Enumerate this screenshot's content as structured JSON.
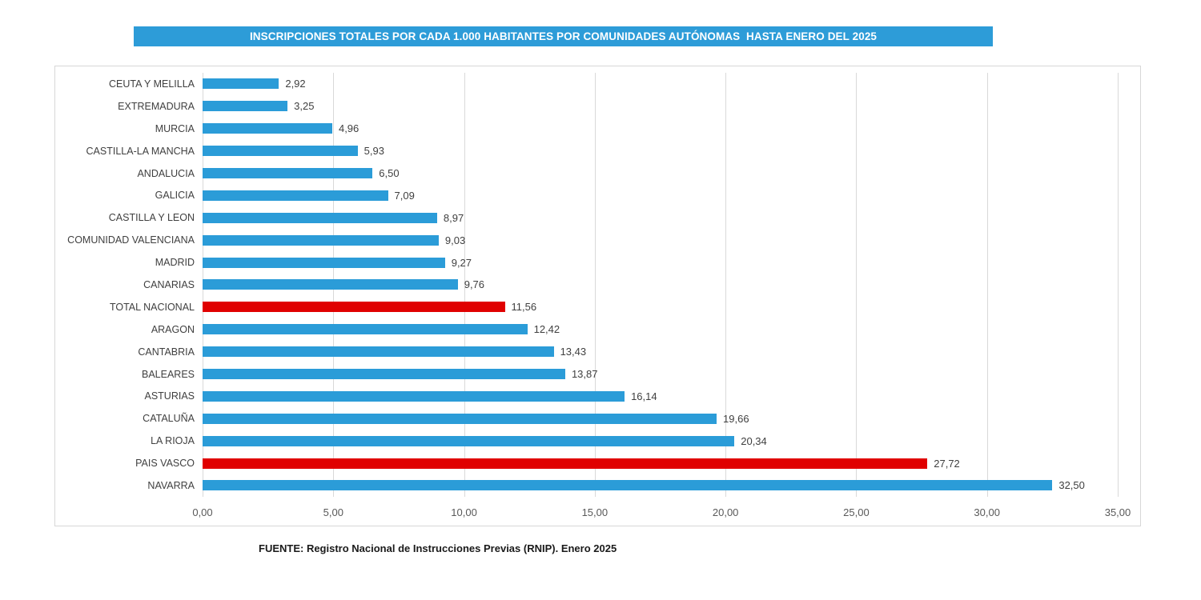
{
  "title": {
    "text": "INSCRIPCIONES TOTALES POR CADA 1.000 HABITANTES POR COMUNIDADES AUTÓNOMAS  HASTA ENERO DEL 2025"
  },
  "source_note": "FUENTE: Registro Nacional de Instrucciones Previas (RNIP). Enero 2025",
  "colors": {
    "title_bg": "#2d9cd8",
    "bar_blue": "#2b9cd8",
    "bar_red": "#e00000",
    "grid": "#d9d9d9",
    "label_text": "#3f3f3f",
    "axis_text": "#595959"
  },
  "chart_data": {
    "type": "bar",
    "orientation": "horizontal",
    "title": "INSCRIPCIONES TOTALES POR CADA 1.000 HABITANTES POR COMUNIDADES AUTÓNOMAS  HASTA ENERO DEL 2025",
    "xlabel": "",
    "ylabel": "",
    "xlim": [
      0,
      35
    ],
    "grid": true,
    "legend": false,
    "x_ticks": [
      {
        "value": 0,
        "label": "0,00"
      },
      {
        "value": 5,
        "label": "5,00"
      },
      {
        "value": 10,
        "label": "10,00"
      },
      {
        "value": 15,
        "label": "15,00"
      },
      {
        "value": 20,
        "label": "20,00"
      },
      {
        "value": 25,
        "label": "25,00"
      },
      {
        "value": 30,
        "label": "30,00"
      },
      {
        "value": 35,
        "label": "35,00"
      }
    ],
    "highlighted_categories": [
      "TOTAL NACIONAL",
      "PAIS VASCO"
    ],
    "rows": [
      {
        "label": "CEUTA Y MELILLA",
        "value": 2.92,
        "display": "2,92",
        "highlight": false
      },
      {
        "label": "EXTREMADURA",
        "value": 3.25,
        "display": "3,25",
        "highlight": false
      },
      {
        "label": "MURCIA",
        "value": 4.96,
        "display": "4,96",
        "highlight": false
      },
      {
        "label": "CASTILLA-LA MANCHA",
        "value": 5.93,
        "display": "5,93",
        "highlight": false
      },
      {
        "label": "ANDALUCIA",
        "value": 6.5,
        "display": "6,50",
        "highlight": false
      },
      {
        "label": "GALICIA",
        "value": 7.09,
        "display": "7,09",
        "highlight": false
      },
      {
        "label": "CASTILLA Y LEON",
        "value": 8.97,
        "display": "8,97",
        "highlight": false
      },
      {
        "label": "COMUNIDAD VALENCIANA",
        "value": 9.03,
        "display": "9,03",
        "highlight": false
      },
      {
        "label": "MADRID",
        "value": 9.27,
        "display": "9,27",
        "highlight": false
      },
      {
        "label": "CANARIAS",
        "value": 9.76,
        "display": "9,76",
        "highlight": false
      },
      {
        "label": "TOTAL NACIONAL",
        "value": 11.56,
        "display": "11,56",
        "highlight": true
      },
      {
        "label": "ARAGON",
        "value": 12.42,
        "display": "12,42",
        "highlight": false
      },
      {
        "label": "CANTABRIA",
        "value": 13.43,
        "display": "13,43",
        "highlight": false
      },
      {
        "label": "BALEARES",
        "value": 13.87,
        "display": "13,87",
        "highlight": false
      },
      {
        "label": "ASTURIAS",
        "value": 16.14,
        "display": "16,14",
        "highlight": false
      },
      {
        "label": "CATALUÑA",
        "value": 19.66,
        "display": "19,66",
        "highlight": false
      },
      {
        "label": "LA RIOJA",
        "value": 20.34,
        "display": "20,34",
        "highlight": false
      },
      {
        "label": "PAIS VASCO",
        "value": 27.72,
        "display": "27,72",
        "highlight": true
      },
      {
        "label": "NAVARRA",
        "value": 32.5,
        "display": "32,50",
        "highlight": false
      }
    ]
  }
}
